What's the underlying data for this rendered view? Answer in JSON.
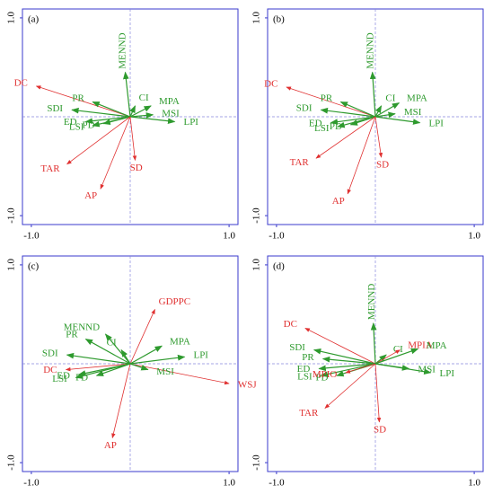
{
  "chart_data": [
    {
      "type": "biplot",
      "title": "(a)",
      "xlim": [
        -1.09,
        1.09
      ],
      "ylim": [
        -1.09,
        1.09
      ],
      "xticks": [
        {
          "value": -1,
          "label": "-1.0"
        },
        {
          "value": 1,
          "label": "1.0"
        }
      ],
      "yticks": [
        {
          "value": -1,
          "label": "-1.0"
        },
        {
          "value": 1,
          "label": "1.0"
        }
      ],
      "arrows": [
        {
          "name": "DC",
          "color": "#e03030",
          "x": -0.95,
          "y": 0.31
        },
        {
          "name": "PR",
          "color": "#2e9a2e",
          "x": -0.38,
          "y": 0.15
        },
        {
          "name": "SDI",
          "color": "#2e9a2e",
          "x": -0.59,
          "y": 0.07
        },
        {
          "name": "ED",
          "color": "#2e9a2e",
          "x": -0.45,
          "y": -0.05
        },
        {
          "name": "LSI",
          "color": "#2e9a2e",
          "x": -0.38,
          "y": -0.09
        },
        {
          "name": "PD",
          "color": "#2e9a2e",
          "x": -0.27,
          "y": -0.07
        },
        {
          "name": "MENND",
          "color": "#2e9a2e",
          "x": -0.05,
          "y": 0.45
        },
        {
          "name": "CI",
          "color": "#2e9a2e",
          "x": 0.05,
          "y": 0.11
        },
        {
          "name": "MPA",
          "color": "#2e9a2e",
          "x": 0.21,
          "y": 0.11
        },
        {
          "name": "MSI",
          "color": "#2e9a2e",
          "x": 0.23,
          "y": 0.02
        },
        {
          "name": "LPI",
          "color": "#2e9a2e",
          "x": 0.45,
          "y": -0.05
        },
        {
          "name": "TAR",
          "color": "#e03030",
          "x": -0.64,
          "y": -0.48
        },
        {
          "name": "AP",
          "color": "#e03030",
          "x": -0.3,
          "y": -0.73
        },
        {
          "name": "SD",
          "color": "#e03030",
          "x": 0.05,
          "y": -0.44
        }
      ]
    },
    {
      "type": "biplot",
      "title": "(b)",
      "xlim": [
        -1.09,
        1.09
      ],
      "ylim": [
        -1.09,
        1.09
      ],
      "xticks": [
        {
          "value": -1,
          "label": "-1.0"
        },
        {
          "value": 1,
          "label": "1.0"
        }
      ],
      "yticks": [
        {
          "value": -1,
          "label": "-1.0"
        },
        {
          "value": 1,
          "label": "1.0"
        }
      ],
      "arrows": [
        {
          "name": "DC",
          "color": "#e03030",
          "x": -0.9,
          "y": 0.3
        },
        {
          "name": "PR",
          "color": "#2e9a2e",
          "x": -0.35,
          "y": 0.15
        },
        {
          "name": "SDI",
          "color": "#2e9a2e",
          "x": -0.55,
          "y": 0.07
        },
        {
          "name": "ED",
          "color": "#2e9a2e",
          "x": -0.45,
          "y": -0.06
        },
        {
          "name": "LSI",
          "color": "#2e9a2e",
          "x": -0.38,
          "y": -0.1
        },
        {
          "name": "PD",
          "color": "#2e9a2e",
          "x": -0.25,
          "y": -0.08
        },
        {
          "name": "MENND",
          "color": "#2e9a2e",
          "x": -0.03,
          "y": 0.45
        },
        {
          "name": "CI",
          "color": "#2e9a2e",
          "x": 0.06,
          "y": 0.11
        },
        {
          "name": "MPA",
          "color": "#2e9a2e",
          "x": 0.24,
          "y": 0.14
        },
        {
          "name": "MSI",
          "color": "#2e9a2e",
          "x": 0.2,
          "y": 0.03
        },
        {
          "name": "LPI",
          "color": "#2e9a2e",
          "x": 0.45,
          "y": -0.06
        },
        {
          "name": "TAR",
          "color": "#e03030",
          "x": -0.6,
          "y": -0.42
        },
        {
          "name": "AP",
          "color": "#e03030",
          "x": -0.28,
          "y": -0.78
        },
        {
          "name": "SD",
          "color": "#e03030",
          "x": 0.06,
          "y": -0.41
        }
      ]
    },
    {
      "type": "biplot",
      "title": "(c)",
      "xlim": [
        -1.09,
        1.09
      ],
      "ylim": [
        -1.09,
        1.09
      ],
      "xticks": [
        {
          "value": -1,
          "label": "-1.0"
        },
        {
          "value": 1,
          "label": "1.0"
        }
      ],
      "yticks": [
        {
          "value": -1,
          "label": "-1.0"
        },
        {
          "value": 1,
          "label": "1.0"
        }
      ],
      "arrows": [
        {
          "name": "GDPPC",
          "color": "#e03030",
          "x": 0.25,
          "y": 0.55
        },
        {
          "name": "WSJ",
          "color": "#e03030",
          "x": 1.0,
          "y": -0.2
        },
        {
          "name": "DC",
          "color": "#e03030",
          "x": -0.65,
          "y": -0.06
        },
        {
          "name": "AP",
          "color": "#e03030",
          "x": -0.18,
          "y": -0.75
        },
        {
          "name": "PR",
          "color": "#2e9a2e",
          "x": -0.45,
          "y": 0.25
        },
        {
          "name": "SDI",
          "color": "#2e9a2e",
          "x": -0.64,
          "y": 0.09
        },
        {
          "name": "MENND",
          "color": "#2e9a2e",
          "x": -0.25,
          "y": 0.3
        },
        {
          "name": "CI",
          "color": "#2e9a2e",
          "x": -0.09,
          "y": 0.14
        },
        {
          "name": "MPA",
          "color": "#2e9a2e",
          "x": 0.32,
          "y": 0.18
        },
        {
          "name": "LPI",
          "color": "#2e9a2e",
          "x": 0.55,
          "y": 0.07
        },
        {
          "name": "MSI",
          "color": "#2e9a2e",
          "x": 0.18,
          "y": -0.06
        },
        {
          "name": "ED",
          "color": "#2e9a2e",
          "x": -0.52,
          "y": -0.11
        },
        {
          "name": "LSI",
          "color": "#2e9a2e",
          "x": -0.55,
          "y": -0.14
        },
        {
          "name": "PD",
          "color": "#2e9a2e",
          "x": -0.34,
          "y": -0.12
        }
      ]
    },
    {
      "type": "biplot",
      "title": "(d)",
      "xlim": [
        -1.09,
        1.09
      ],
      "ylim": [
        -1.09,
        1.09
      ],
      "xticks": [
        {
          "value": -1,
          "label": "-1.0"
        },
        {
          "value": 1,
          "label": "1.0"
        }
      ],
      "yticks": [
        {
          "value": -1,
          "label": "-1.0"
        },
        {
          "value": 1,
          "label": "1.0"
        }
      ],
      "arrows": [
        {
          "name": "DC",
          "color": "#e03030",
          "x": -0.71,
          "y": 0.36
        },
        {
          "name": "MENND",
          "color": "#2e9a2e",
          "x": -0.02,
          "y": 0.41
        },
        {
          "name": "SDI",
          "color": "#2e9a2e",
          "x": -0.62,
          "y": 0.14
        },
        {
          "name": "PR",
          "color": "#2e9a2e",
          "x": -0.53,
          "y": 0.05
        },
        {
          "name": "ED",
          "color": "#2e9a2e",
          "x": -0.57,
          "y": -0.05
        },
        {
          "name": "LSI",
          "color": "#2e9a2e",
          "x": -0.55,
          "y": -0.12
        },
        {
          "name": "PD",
          "color": "#2e9a2e",
          "x": -0.39,
          "y": -0.12
        },
        {
          "name": "MPIO",
          "color": "#e03030",
          "x": -0.3,
          "y": -0.09
        },
        {
          "name": "TAR",
          "color": "#e03030",
          "x": -0.51,
          "y": -0.45
        },
        {
          "name": "SD",
          "color": "#e03030",
          "x": 0.04,
          "y": -0.59
        },
        {
          "name": "CI",
          "color": "#2e9a2e",
          "x": 0.11,
          "y": 0.09
        },
        {
          "name": "MPIA",
          "color": "#e03030",
          "x": 0.25,
          "y": 0.14
        },
        {
          "name": "MPA",
          "color": "#2e9a2e",
          "x": 0.43,
          "y": 0.15
        },
        {
          "name": "MSI",
          "color": "#2e9a2e",
          "x": 0.34,
          "y": -0.05
        },
        {
          "name": "LPI",
          "color": "#2e9a2e",
          "x": 0.56,
          "y": -0.09
        }
      ]
    }
  ]
}
